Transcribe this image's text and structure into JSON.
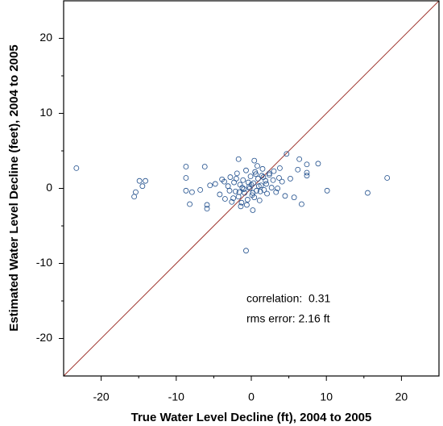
{
  "chart_data": {
    "type": "scatter",
    "x_label": "True Water Level Decline (ft), 2004 to 2005",
    "y_label": "Estimated Water Level Decline (feet), 2004 to 2005",
    "annotations": [
      "correlation:  0.31",
      "rms error: 2.16 ft"
    ],
    "color": "#1f4e8c",
    "diagonal_color": "#a0362f",
    "x": [
      -23.3,
      -15.4,
      -15.6,
      -14.9,
      -14.1,
      -14.5,
      -8.7,
      -8.7,
      -8.7,
      -8.2,
      -7.9,
      -6.2,
      -5.9,
      -5.9,
      -0.7,
      18.1,
      15.5,
      10.1,
      8.9,
      7.4,
      6.7,
      5.7,
      4.7,
      6.4,
      7.4,
      7.4,
      6.2,
      -1.7,
      0.4,
      0.2,
      -4.8,
      -4.2,
      -3.9,
      -3.5,
      -3.1,
      -2.8,
      -2.6,
      -2.3,
      -2.1,
      -1.9,
      -1.7,
      -1.5,
      -1.3,
      -1.1,
      -0.9,
      -0.7,
      -0.5,
      -0.3,
      -0.1,
      0.1,
      0.3,
      0.5,
      0.7,
      0.9,
      1.1,
      1.3,
      1.5,
      1.7,
      1.9,
      2.1,
      2.4,
      2.7,
      3.0,
      3.3,
      3.7,
      4.1,
      4.5,
      -2.9,
      -2.0,
      -1.2,
      -0.6,
      0.0,
      0.6,
      1.2,
      2.0,
      2.9,
      3.8,
      -3.6,
      -1.6,
      -0.4,
      0.4,
      1.6,
      3.5,
      -2.4,
      -1.0,
      0.2,
      1.0,
      2.4,
      -1.4,
      0.8,
      -0.2,
      1.4,
      -5.5,
      -6.8,
      5.2
    ],
    "values": [
      2.7,
      -0.5,
      -1.1,
      1.0,
      1.0,
      0.3,
      2.9,
      1.4,
      -0.3,
      -2.1,
      -0.5,
      2.9,
      -2.2,
      -2.7,
      -8.3,
      1.4,
      -0.6,
      -0.3,
      3.3,
      3.2,
      -2.1,
      -1.2,
      4.6,
      3.9,
      2.1,
      1.7,
      2.5,
      3.9,
      3.7,
      -2.9,
      0.6,
      -0.8,
      1.2,
      -1.4,
      0.3,
      1.5,
      -1.8,
      0.8,
      -0.4,
      2.0,
      -1.1,
      0.5,
      -1.9,
      1.1,
      -0.6,
      2.4,
      -1.5,
      0.2,
      1.6,
      -0.9,
      0.7,
      2.2,
      -0.3,
      1.3,
      -1.6,
      0.4,
      2.6,
      -0.2,
      1.0,
      -0.7,
      1.8,
      0.1,
      2.3,
      -0.5,
      1.4,
      0.9,
      -1.0,
      -0.3,
      1.3,
      0.1,
      -2.2,
      0.5,
      1.9,
      -0.4,
      0.6,
      1.1,
      2.7,
      0.9,
      -0.5,
      0.8,
      -1.2,
      1.5,
      0.0,
      -1.3,
      -0.1,
      -0.6,
      0.3,
      2.0,
      -2.4,
      3.0,
      0.0,
      1.7,
      0.4,
      -0.2,
      1.3
    ],
    "xlim": [
      -25,
      25
    ],
    "ylim": [
      -25,
      25
    ],
    "xticks": [
      -20,
      -10,
      0,
      10,
      20
    ],
    "yticks": [
      -20,
      -10,
      0,
      10,
      20
    ],
    "minor_ticks": [
      -15,
      -5,
      5,
      15
    ]
  }
}
